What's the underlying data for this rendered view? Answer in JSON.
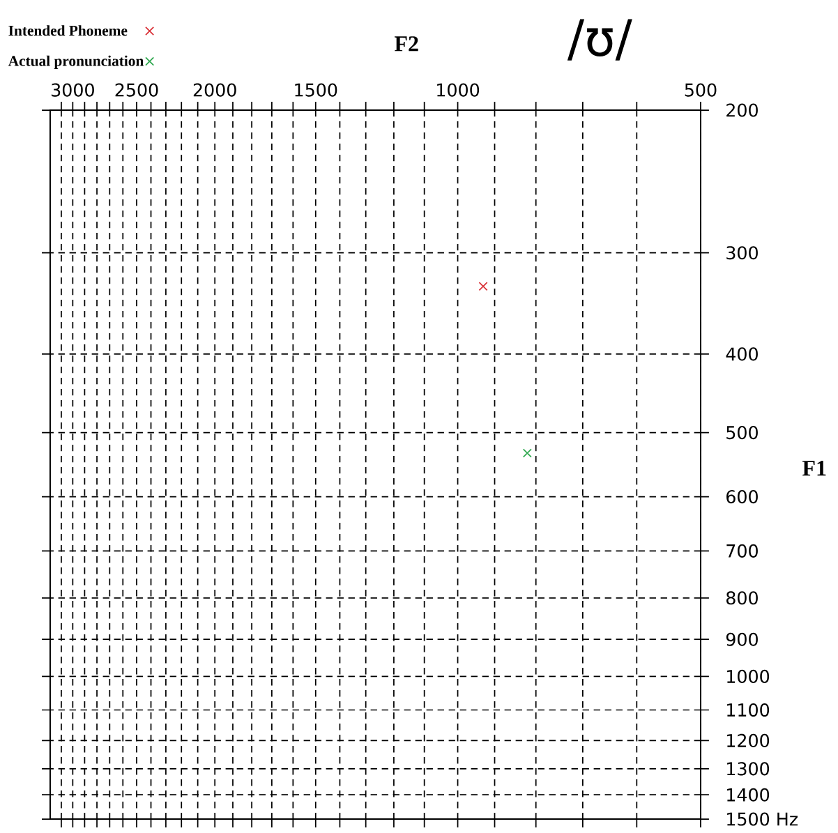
{
  "chart_data": {
    "type": "scatter",
    "title": "/ʊ/",
    "xlabel": "F2",
    "ylabel": "F1",
    "log": "xy",
    "grid": true,
    "legend": "top left",
    "marker": "cross",
    "xlim": [
      3200,
      500
    ],
    "ylim": [
      1500,
      200
    ],
    "xticks": [
      500,
      {
        "value": 600,
        "label": null
      },
      {
        "value": 700,
        "label": null
      },
      {
        "value": 800,
        "label": null
      },
      {
        "value": 900,
        "label": null
      },
      1000,
      {
        "value": 1100,
        "label": null
      },
      {
        "value": 1200,
        "label": null
      },
      {
        "value": 1300,
        "label": null
      },
      {
        "value": 1400,
        "label": null
      },
      1500,
      {
        "value": 1600,
        "label": null
      },
      {
        "value": 1700,
        "label": null
      },
      {
        "value": 1800,
        "label": null
      },
      {
        "value": 1900,
        "label": null
      },
      2000,
      {
        "value": 2100,
        "label": null
      },
      {
        "value": 2200,
        "label": null
      },
      {
        "value": 2300,
        "label": null
      },
      {
        "value": 2400,
        "label": null
      },
      2500,
      {
        "value": 2600,
        "label": null
      },
      {
        "value": 2700,
        "label": null
      },
      {
        "value": 2800,
        "label": null
      },
      {
        "value": 2900,
        "label": null
      },
      3000,
      {
        "value": 3100,
        "label": null
      }
    ],
    "yticks": [
      200,
      300,
      400,
      500,
      600,
      700,
      800,
      900,
      1000,
      1100,
      1200,
      1300,
      1400,
      {
        "value": 1500,
        "label": "1500 Hz"
      }
    ],
    "series": [
      {
        "name": "Intended Phoneme",
        "color": "#d9343a",
        "x": [
          930
        ],
        "values": [
          330
        ]
      },
      {
        "name": "Actual pronunciation",
        "color": "#2fa84f",
        "x": [
          820
        ],
        "values": [
          530
        ]
      }
    ]
  }
}
